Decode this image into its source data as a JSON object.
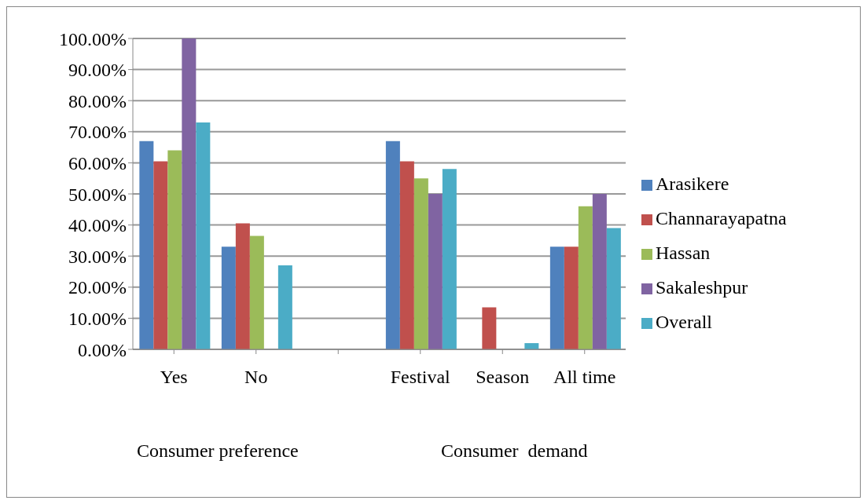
{
  "chart_data": {
    "type": "bar",
    "categories": [
      "Yes",
      "No",
      null,
      "Festival",
      "Season",
      "All time"
    ],
    "series": [
      {
        "name": "Arasikere",
        "color": "#4f81bd",
        "values": [
          67,
          33,
          null,
          67,
          0,
          33
        ]
      },
      {
        "name": "Channarayapatna",
        "color": "#c0504d",
        "values": [
          60.5,
          40.5,
          null,
          60.5,
          13.5,
          33
        ]
      },
      {
        "name": "Hassan",
        "color": "#9bbb59",
        "values": [
          64,
          36.5,
          null,
          55,
          0,
          46
        ]
      },
      {
        "name": "Sakaleshpur",
        "color": "#8064a2",
        "values": [
          100,
          0,
          null,
          50,
          0,
          50
        ]
      },
      {
        "name": "Overall",
        "color": "#4bacc6",
        "values": [
          73,
          27,
          null,
          58,
          2,
          39
        ]
      }
    ],
    "ylim": [
      0,
      100
    ],
    "yticks": [
      {
        "value": 0,
        "label": "0.00%"
      },
      {
        "value": 10,
        "label": "10.00%"
      },
      {
        "value": 20,
        "label": "20.00%"
      },
      {
        "value": 30,
        "label": "30.00%"
      },
      {
        "value": 40,
        "label": "40.00%"
      },
      {
        "value": 50,
        "label": "50.00%"
      },
      {
        "value": 60,
        "label": "60.00%"
      },
      {
        "value": 70,
        "label": "70.00%"
      },
      {
        "value": 80,
        "label": "80.00%"
      },
      {
        "value": 90,
        "label": "90.00%"
      },
      {
        "value": 100,
        "label": "100.00%"
      }
    ],
    "grid": "y",
    "legend": "right",
    "annotations": [
      "Consumer preference",
      "Consumer  demand"
    ]
  }
}
